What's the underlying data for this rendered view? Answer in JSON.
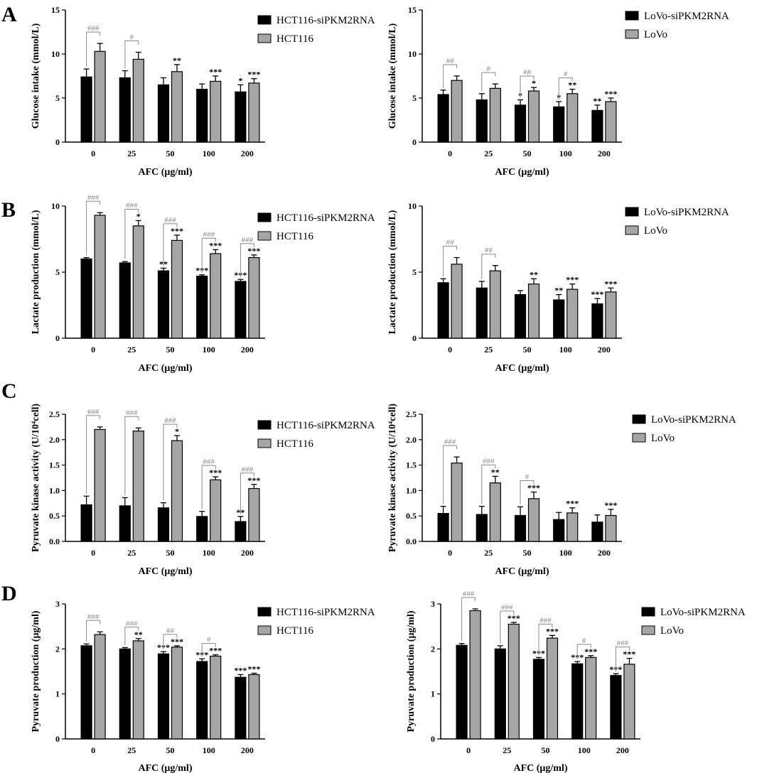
{
  "figure": {
    "panel_labels": [
      "A",
      "B",
      "C",
      "D"
    ],
    "colors": {
      "bar_a": "#000000",
      "bar_b": "#a6a6a6",
      "bracket": "#8a8a8a"
    }
  },
  "chart_data": [
    {
      "type": "bar",
      "panel": "A",
      "xlabel": "AFC (μg/ml)",
      "ylabel": "Glucose intake (mmol/L)",
      "categories": [
        "0",
        "25",
        "50",
        "100",
        "200"
      ],
      "ylim": [
        0,
        15
      ],
      "yticks": [
        "0",
        "5",
        "10",
        "15"
      ],
      "series": [
        {
          "name": "HCT116-siPKM2RNA",
          "values": [
            7.4,
            7.3,
            6.5,
            6.0,
            5.7
          ],
          "errors": [
            0.9,
            0.8,
            0.8,
            0.6,
            0.8
          ],
          "sig": [
            "",
            "",
            "",
            "",
            "*"
          ]
        },
        {
          "name": "HCT116",
          "values": [
            10.3,
            9.4,
            8.0,
            6.9,
            6.7
          ],
          "errors": [
            0.9,
            0.8,
            0.8,
            0.6,
            0.5
          ],
          "sig": [
            "",
            "",
            "**",
            "***",
            "***"
          ]
        }
      ],
      "hash": [
        "###",
        "#",
        "",
        "",
        ""
      ]
    },
    {
      "type": "bar",
      "panel": "A",
      "xlabel": "AFC (μg/ml)",
      "ylabel": "Glucose intake (mmol/L)",
      "categories": [
        "0",
        "25",
        "50",
        "100",
        "200"
      ],
      "ylim": [
        0,
        15
      ],
      "yticks": [
        "0",
        "5",
        "10",
        "15"
      ],
      "series": [
        {
          "name": "LoVo-siPKM2RNA",
          "values": [
            5.4,
            4.8,
            4.2,
            4.0,
            3.6
          ],
          "errors": [
            0.5,
            0.7,
            0.6,
            0.6,
            0.6
          ],
          "sig": [
            "",
            "",
            "*",
            "*",
            "**"
          ]
        },
        {
          "name": "LoVo",
          "values": [
            7.0,
            6.1,
            5.8,
            5.5,
            4.6
          ],
          "errors": [
            0.5,
            0.5,
            0.4,
            0.5,
            0.4
          ],
          "sig": [
            "",
            "",
            "*",
            "**",
            "***"
          ]
        }
      ],
      "hash": [
        "##",
        "#",
        "##",
        "#",
        ""
      ]
    },
    {
      "type": "bar",
      "panel": "B",
      "xlabel": "AFC (μg/ml)",
      "ylabel": "Lactate production (mmol/L)",
      "categories": [
        "0",
        "25",
        "50",
        "100",
        "200"
      ],
      "ylim": [
        0,
        10
      ],
      "yticks": [
        "0",
        "5",
        "10"
      ],
      "series": [
        {
          "name": "HCT116-siPKM2RNA",
          "values": [
            6.0,
            5.7,
            5.1,
            4.7,
            4.3
          ],
          "errors": [
            0.1,
            0.1,
            0.2,
            0.1,
            0.15
          ],
          "sig": [
            "",
            "",
            "**",
            "***",
            "***"
          ]
        },
        {
          "name": "HCT116",
          "values": [
            9.3,
            8.5,
            7.4,
            6.4,
            6.1
          ],
          "errors": [
            0.2,
            0.4,
            0.4,
            0.3,
            0.2
          ],
          "sig": [
            "",
            "*",
            "***",
            "***",
            "***"
          ]
        }
      ],
      "hash": [
        "###",
        "###",
        "###",
        "###",
        "###"
      ]
    },
    {
      "type": "bar",
      "panel": "B",
      "xlabel": "AFC (μg/ml)",
      "ylabel": "Lactate production (mmol/L)",
      "categories": [
        "0",
        "25",
        "50",
        "100",
        "200"
      ],
      "ylim": [
        0,
        10
      ],
      "yticks": [
        "0",
        "5",
        "10"
      ],
      "series": [
        {
          "name": "LoVo-siPKM2RNA",
          "values": [
            4.2,
            3.8,
            3.3,
            2.9,
            2.6
          ],
          "errors": [
            0.3,
            0.5,
            0.3,
            0.4,
            0.4
          ],
          "sig": [
            "",
            "",
            "",
            "**",
            "***"
          ]
        },
        {
          "name": "LoVo",
          "values": [
            5.6,
            5.1,
            4.1,
            3.7,
            3.5
          ],
          "errors": [
            0.5,
            0.4,
            0.4,
            0.4,
            0.3
          ],
          "sig": [
            "",
            "",
            "**",
            "***",
            "***"
          ]
        }
      ],
      "hash": [
        "##",
        "##",
        "",
        "",
        ""
      ]
    },
    {
      "type": "bar",
      "panel": "C",
      "xlabel": "AFC (μg/ml)",
      "ylabel": "Pyruvate kinase activity (U/10⁴cell)",
      "categories": [
        "0",
        "25",
        "50",
        "100",
        "200"
      ],
      "ylim": [
        0,
        2.5
      ],
      "yticks": [
        "0.0",
        "0.5",
        "1.0",
        "1.5",
        "2.0",
        "2.5"
      ],
      "series": [
        {
          "name": "HCT116-siPKM2RNA",
          "values": [
            0.72,
            0.7,
            0.66,
            0.49,
            0.39
          ],
          "errors": [
            0.17,
            0.16,
            0.1,
            0.1,
            0.1
          ],
          "sig": [
            "",
            "",
            "",
            "",
            "**"
          ]
        },
        {
          "name": "HCT116",
          "values": [
            2.2,
            2.17,
            1.98,
            1.21,
            1.04
          ],
          "errors": [
            0.05,
            0.06,
            0.1,
            0.06,
            0.08
          ],
          "sig": [
            "",
            "",
            "*",
            "***",
            "***"
          ]
        }
      ],
      "hash": [
        "###",
        "###",
        "###",
        "###",
        "###"
      ]
    },
    {
      "type": "bar",
      "panel": "C",
      "xlabel": "AFC (μg/ml)",
      "ylabel": "Pyruvate kinase activity (U/10⁴cell)",
      "categories": [
        "0",
        "25",
        "50",
        "100",
        "200"
      ],
      "ylim": [
        0,
        2.5
      ],
      "yticks": [
        "0.0",
        "0.5",
        "1.0",
        "1.5",
        "2.0",
        "2.5"
      ],
      "series": [
        {
          "name": "LoVo-siPKM2RNA",
          "values": [
            0.55,
            0.53,
            0.51,
            0.43,
            0.38
          ],
          "errors": [
            0.14,
            0.16,
            0.17,
            0.14,
            0.14
          ],
          "sig": [
            "",
            "",
            "",
            "",
            ""
          ]
        },
        {
          "name": "LoVo",
          "values": [
            1.54,
            1.15,
            0.84,
            0.56,
            0.51
          ],
          "errors": [
            0.12,
            0.13,
            0.13,
            0.1,
            0.12
          ],
          "sig": [
            "",
            "**",
            "***",
            "***",
            "***"
          ]
        }
      ],
      "hash": [
        "###",
        "###",
        "#",
        "",
        ""
      ]
    },
    {
      "type": "bar",
      "panel": "D",
      "xlabel": "AFC (μg/ml)",
      "ylabel": "Pyruvate production (μg/ml)",
      "categories": [
        "0",
        "25",
        "50",
        "100",
        "200"
      ],
      "ylim": [
        0,
        3
      ],
      "yticks": [
        "0",
        "1",
        "2",
        "3"
      ],
      "series": [
        {
          "name": "HCT116-siPKM2RNA",
          "values": [
            2.07,
            2.0,
            1.89,
            1.72,
            1.37
          ],
          "errors": [
            0.04,
            0.03,
            0.05,
            0.06,
            0.06
          ],
          "sig": [
            "",
            "",
            "***",
            "***",
            "***"
          ]
        },
        {
          "name": "HCT116",
          "values": [
            2.32,
            2.18,
            2.04,
            1.84,
            1.43
          ],
          "errors": [
            0.06,
            0.05,
            0.03,
            0.03,
            0.03
          ],
          "sig": [
            "",
            "**",
            "***",
            "***",
            "***"
          ]
        }
      ],
      "hash": [
        "###",
        "###",
        "##",
        "#",
        ""
      ]
    },
    {
      "type": "bar",
      "panel": "D",
      "xlabel": "AFC (μg/ml)",
      "ylabel": "Pyruvate production (μg/ml)",
      "categories": [
        "0",
        "25",
        "50",
        "100",
        "200"
      ],
      "ylim": [
        0,
        3
      ],
      "yticks": [
        "0",
        "1",
        "2",
        "3"
      ],
      "series": [
        {
          "name": "LoVo-siPKM2RNA",
          "values": [
            2.08,
            2.0,
            1.77,
            1.67,
            1.41
          ],
          "errors": [
            0.04,
            0.07,
            0.04,
            0.05,
            0.04
          ],
          "sig": [
            "",
            "",
            "***",
            "***",
            "***"
          ]
        },
        {
          "name": "LoVo",
          "values": [
            2.85,
            2.55,
            2.24,
            1.81,
            1.66
          ],
          "errors": [
            0.04,
            0.04,
            0.06,
            0.04,
            0.13
          ],
          "sig": [
            "",
            "***",
            "***",
            "***",
            "***"
          ]
        }
      ],
      "hash": [
        "###",
        "###",
        "###",
        "#",
        "###"
      ]
    }
  ]
}
